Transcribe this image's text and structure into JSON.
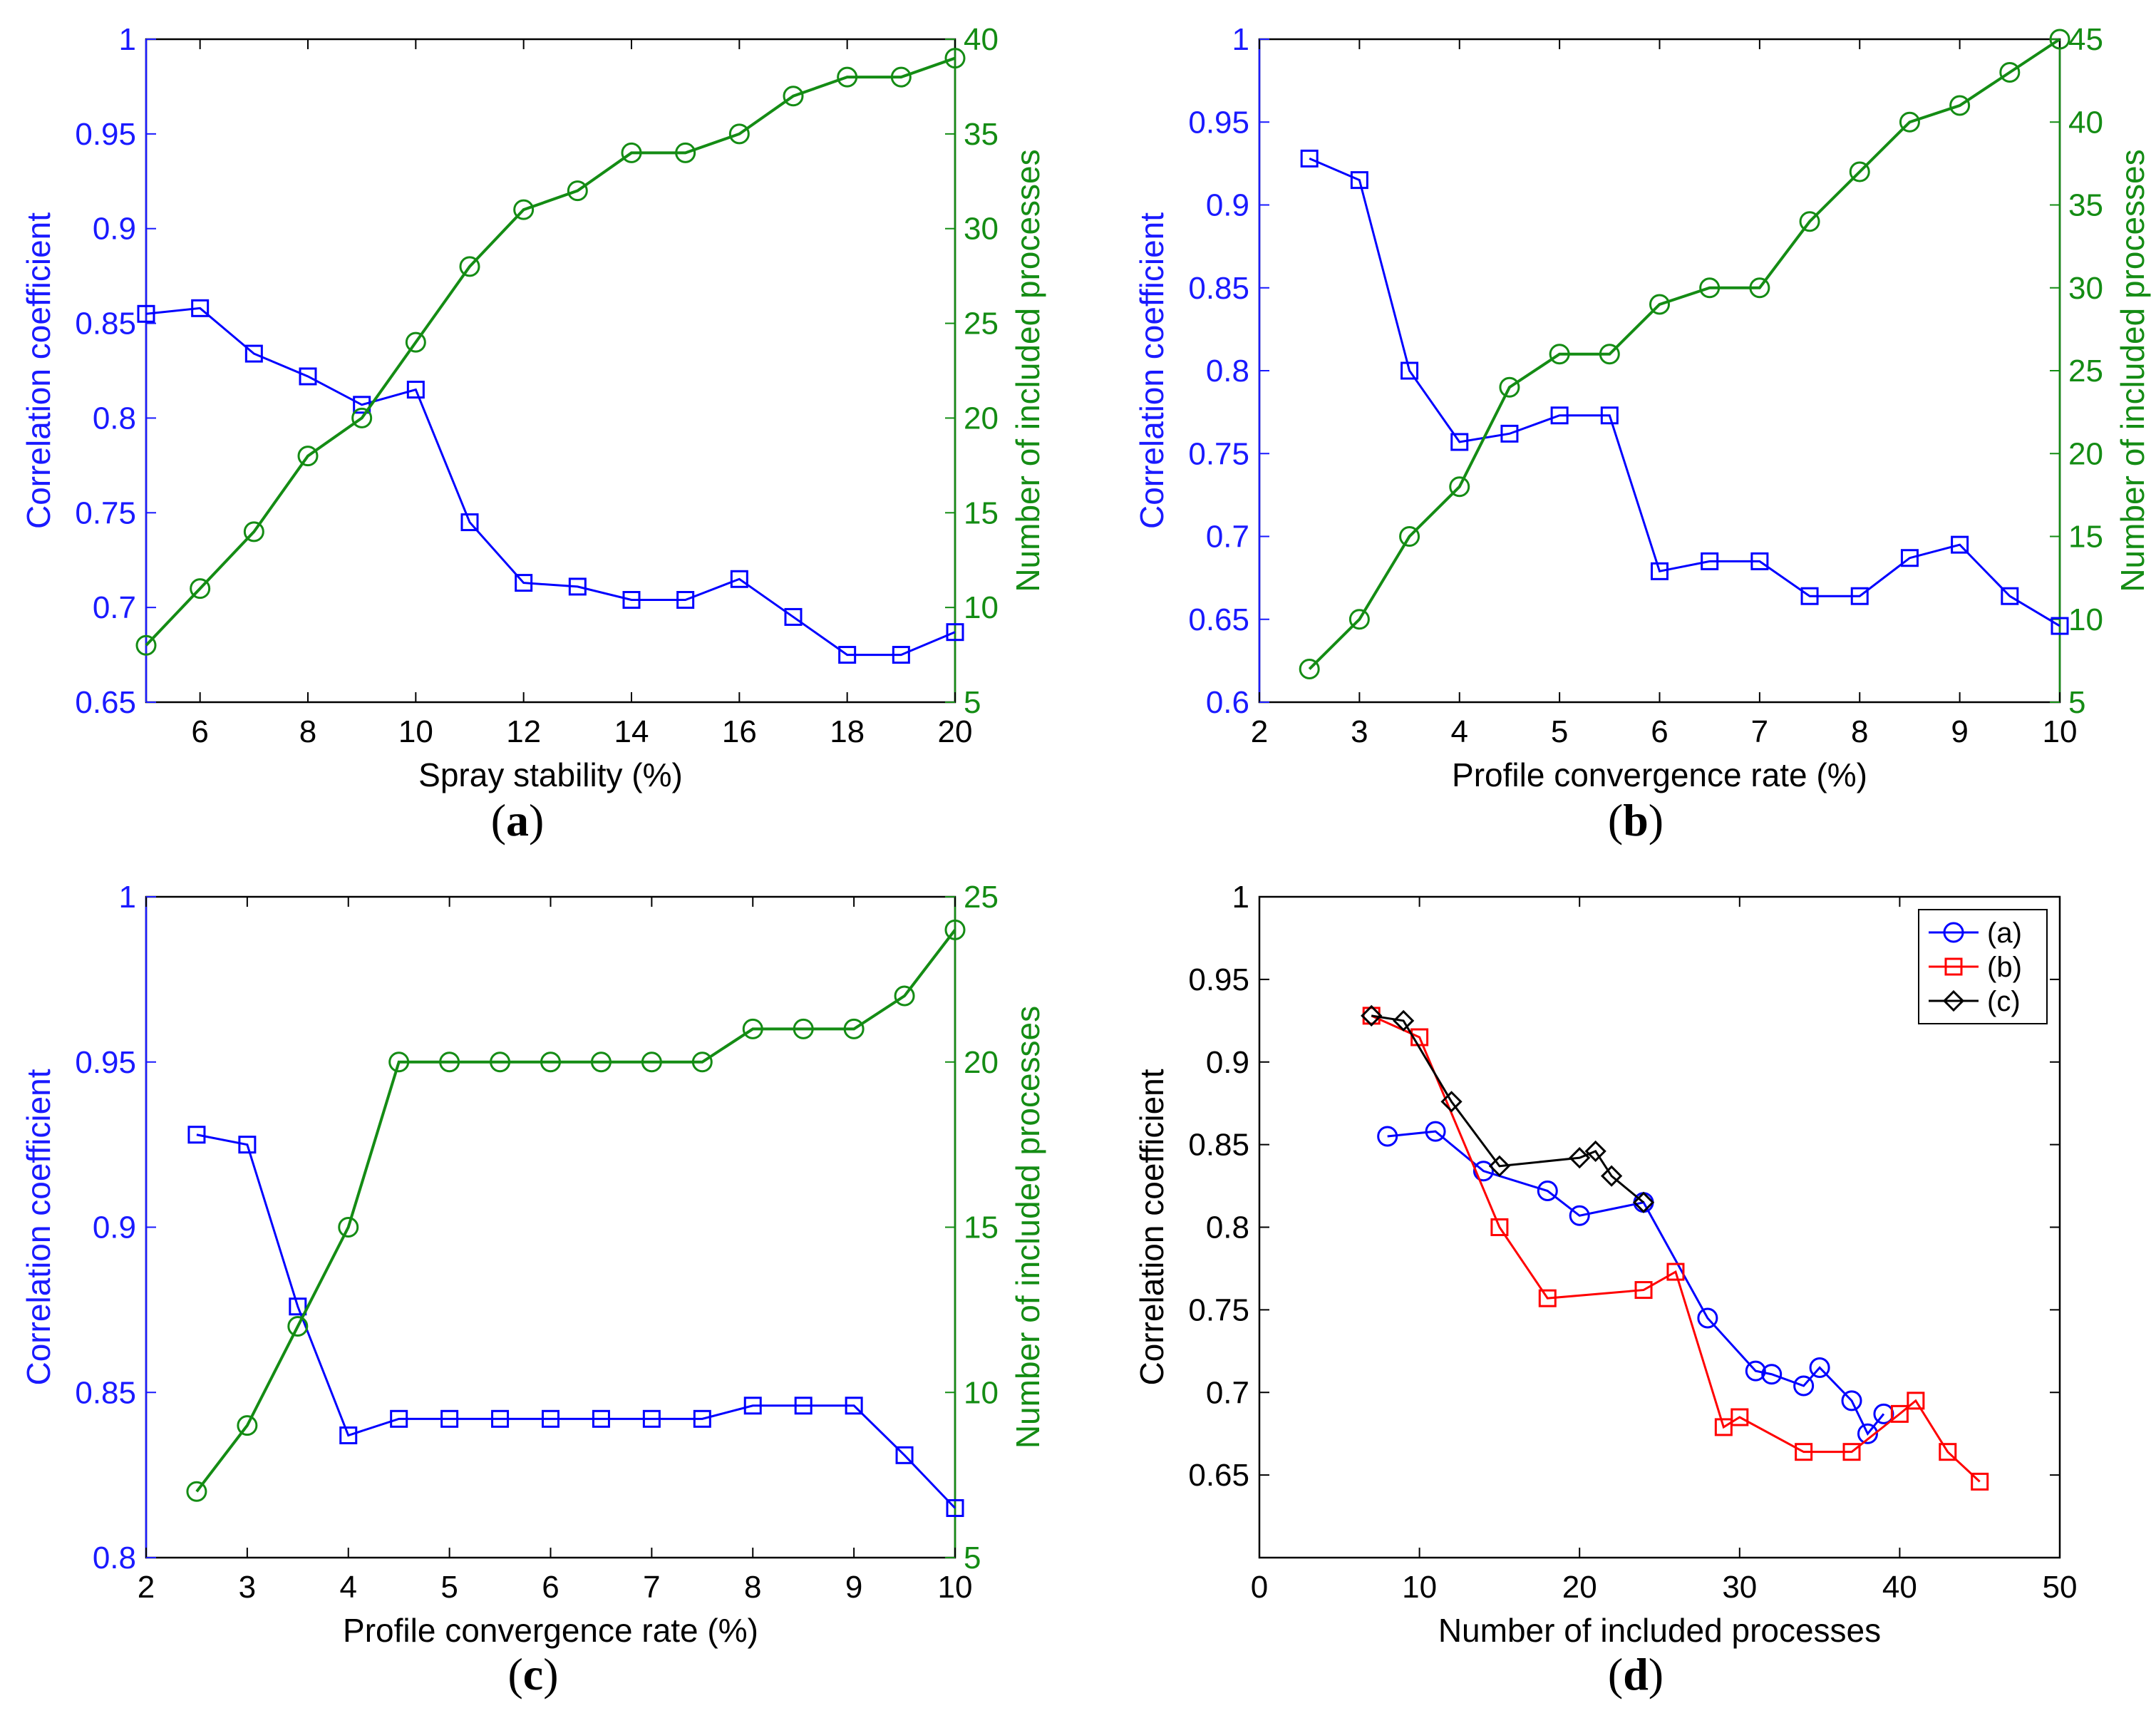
{
  "colors": {
    "left_axis": "#1a1aff",
    "right_axis": "#148c14",
    "series_a": "#0000ff",
    "series_b": "#ff0000",
    "series_c": "#000000"
  },
  "chart_data": [
    {
      "id": "a",
      "type": "line",
      "caption": "a",
      "xlabel": "Spray stability (%)",
      "ylabel": "Correlation coefficient",
      "y2label": "Number of included processes",
      "xlim": [
        5,
        20
      ],
      "ylim": [
        0.65,
        1
      ],
      "y2lim": [
        5,
        40
      ],
      "xticks": [
        6,
        8,
        10,
        12,
        14,
        16,
        18,
        20
      ],
      "yticks": [
        0.65,
        0.7,
        0.75,
        0.8,
        0.85,
        0.9,
        0.95,
        1
      ],
      "y2ticks": [
        5,
        10,
        15,
        20,
        25,
        30,
        35,
        40
      ],
      "x": [
        5,
        6,
        7,
        8,
        9,
        10,
        11,
        12,
        13,
        14,
        15,
        16,
        17,
        18,
        19,
        20
      ],
      "series": [
        {
          "name": "Correlation coefficient",
          "axis": "left",
          "marker": "square",
          "values": [
            0.855,
            0.858,
            0.834,
            0.822,
            0.807,
            0.815,
            0.745,
            0.713,
            0.711,
            0.704,
            0.704,
            0.715,
            0.695,
            0.675,
            0.675,
            0.687
          ]
        },
        {
          "name": "Number of included processes",
          "axis": "right",
          "marker": "circle",
          "values": [
            8,
            11,
            14,
            18,
            20,
            24,
            28,
            31,
            32,
            34,
            34,
            35,
            37,
            38,
            38,
            39
          ]
        }
      ]
    },
    {
      "id": "b",
      "type": "line",
      "caption": "b",
      "xlabel": "Profile convergence rate (%)",
      "ylabel": "Correlation coefficient",
      "y2label": "Number of included processes",
      "xlim": [
        2,
        10
      ],
      "ylim": [
        0.6,
        1
      ],
      "y2lim": [
        5,
        45
      ],
      "xticks": [
        2,
        3,
        4,
        5,
        6,
        7,
        8,
        9,
        10
      ],
      "yticks": [
        0.6,
        0.65,
        0.7,
        0.75,
        0.8,
        0.85,
        0.9,
        0.95,
        1
      ],
      "y2ticks": [
        5,
        10,
        15,
        20,
        25,
        30,
        35,
        40,
        45
      ],
      "x": [
        2.5,
        3,
        3.5,
        4,
        4.5,
        5,
        5.5,
        6,
        6.5,
        7,
        7.5,
        8,
        8.5,
        9,
        9.5,
        10
      ],
      "series": [
        {
          "name": "Correlation coefficient",
          "axis": "left",
          "marker": "square",
          "values": [
            0.928,
            0.915,
            0.8,
            0.757,
            0.762,
            0.773,
            0.773,
            0.679,
            0.685,
            0.685,
            0.664,
            0.664,
            0.687,
            0.695,
            0.664,
            0.646
          ]
        },
        {
          "name": "Number of included processes",
          "axis": "right",
          "marker": "circle",
          "values": [
            7,
            10,
            15,
            18,
            24,
            26,
            26,
            29,
            30,
            30,
            34,
            37,
            40,
            41,
            43,
            45
          ]
        }
      ]
    },
    {
      "id": "c",
      "type": "line",
      "caption": "c",
      "xlabel": "Profile convergence rate (%)",
      "ylabel": "Correlation coefficient",
      "y2label": "Number of included processes",
      "xlim": [
        2,
        10
      ],
      "ylim": [
        0.8,
        1
      ],
      "y2lim": [
        5,
        25
      ],
      "xticks": [
        2,
        3,
        4,
        5,
        6,
        7,
        8,
        9,
        10
      ],
      "yticks": [
        0.8,
        0.85,
        0.9,
        0.95,
        1
      ],
      "y2ticks": [
        5,
        10,
        15,
        20,
        25
      ],
      "x": [
        2.5,
        3,
        3.5,
        4,
        4.5,
        5,
        5.5,
        6,
        6.5,
        7,
        7.5,
        8,
        8.5,
        9,
        9.5,
        10
      ],
      "series": [
        {
          "name": "Correlation coefficient",
          "axis": "left",
          "marker": "square",
          "values": [
            0.928,
            0.925,
            0.876,
            0.837,
            0.842,
            0.842,
            0.842,
            0.842,
            0.842,
            0.842,
            0.842,
            0.846,
            0.846,
            0.846,
            0.831,
            0.815
          ]
        },
        {
          "name": "Number of included processes",
          "axis": "right",
          "marker": "circle",
          "values": [
            7,
            9,
            12,
            15,
            20,
            20,
            20,
            20,
            20,
            20,
            20,
            21,
            21,
            21,
            22,
            24
          ]
        }
      ]
    },
    {
      "id": "d",
      "type": "line",
      "caption": "d",
      "xlabel": "Number of included processes",
      "ylabel": "Correlation coefficient",
      "xlim": [
        0,
        50
      ],
      "ylim": [
        0.6,
        1
      ],
      "xticks": [
        0,
        10,
        20,
        30,
        40,
        50
      ],
      "yticks": [
        0.65,
        0.7,
        0.75,
        0.8,
        0.85,
        0.9,
        0.95,
        1
      ],
      "legend_position": "top-right",
      "series": [
        {
          "name": "(a)",
          "marker": "circle",
          "color": "#0000ff",
          "x": [
            8,
            11,
            14,
            18,
            20,
            24,
            28,
            31,
            32,
            34,
            35,
            37,
            38,
            39
          ],
          "values": [
            0.855,
            0.858,
            0.834,
            0.822,
            0.807,
            0.815,
            0.745,
            0.713,
            0.711,
            0.704,
            0.715,
            0.695,
            0.675,
            0.687
          ]
        },
        {
          "name": "(b)",
          "marker": "square",
          "color": "#ff0000",
          "x": [
            7,
            10,
            15,
            18,
            24,
            26,
            29,
            30,
            34,
            37,
            40,
            41,
            43,
            45
          ],
          "values": [
            0.928,
            0.915,
            0.8,
            0.757,
            0.762,
            0.773,
            0.679,
            0.685,
            0.664,
            0.664,
            0.687,
            0.695,
            0.664,
            0.646
          ]
        },
        {
          "name": "(c)",
          "marker": "diamond",
          "color": "#000000",
          "x": [
            7,
            9,
            12,
            15,
            20,
            21,
            22,
            24
          ],
          "values": [
            0.928,
            0.925,
            0.876,
            0.837,
            0.842,
            0.846,
            0.831,
            0.815
          ]
        }
      ]
    }
  ]
}
